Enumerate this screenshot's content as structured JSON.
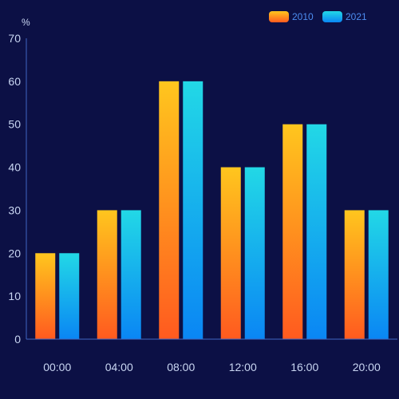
{
  "chart_data": {
    "type": "bar",
    "categories": [
      "00:00",
      "04:00",
      "08:00",
      "12:00",
      "16:00",
      "20:00"
    ],
    "series": [
      {
        "name": "2010",
        "values": [
          20,
          30,
          60,
          40,
          50,
          30
        ],
        "gradient": {
          "top": "#ffc61e",
          "bottom": "#ff5a1f"
        }
      },
      {
        "name": "2021",
        "values": [
          20,
          30,
          60,
          40,
          50,
          30
        ],
        "gradient": {
          "top": "#22d8e6",
          "bottom": "#0a86f4"
        }
      }
    ],
    "yunit": "%",
    "ylim": [
      0,
      70
    ],
    "yticks": [
      0,
      10,
      20,
      30,
      40,
      50,
      60,
      70
    ],
    "grid": false,
    "legend_position": "top-right",
    "colors": {
      "background": "#0c1045",
      "axis_line": "#3f66c2",
      "tick_label": "#c9d6f2",
      "legend_label": "#4d8df0"
    }
  }
}
